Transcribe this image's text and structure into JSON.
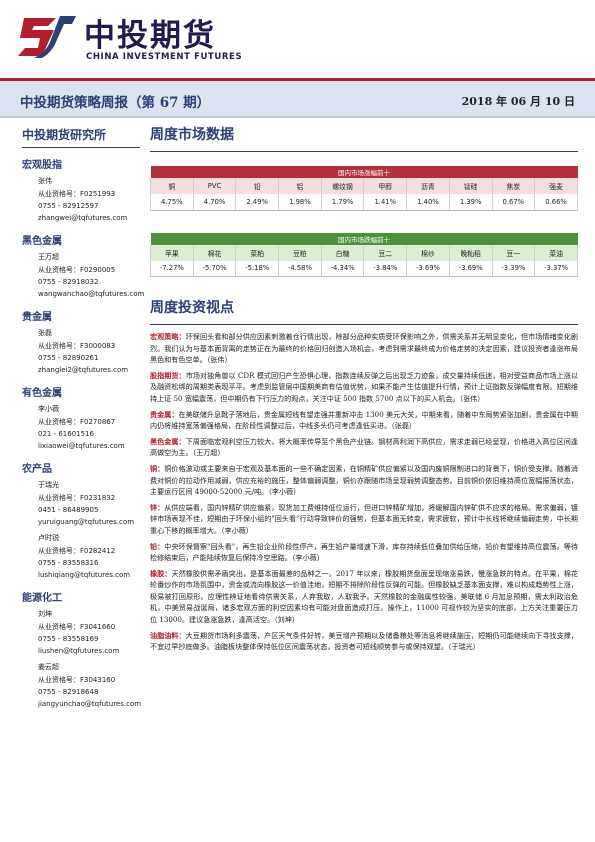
{
  "brand": {
    "name_cn": "中投期货",
    "name_en": "CHINA INVESTMENT FUTURES"
  },
  "report": {
    "title": "中投期货策略周报（第 67 期）",
    "date": "2018 年 06 月 10 日"
  },
  "sidebar": {
    "institute": "中投期货研究所",
    "sections": [
      {
        "title": "宏观股指",
        "people": [
          {
            "name": "张伟",
            "cert": "从业资格号：F0251993",
            "phone": "0755 - 82912597",
            "email": "zhangwei@tqfutures.com"
          }
        ]
      },
      {
        "title": "黑色金属",
        "people": [
          {
            "name": "王万超",
            "cert": "从业资格号：F0290005",
            "phone": "0755 - 82918032",
            "email": "wangwanchao@tqfutures.com"
          }
        ]
      },
      {
        "title": "贵金属",
        "people": [
          {
            "name": "张磊",
            "cert": "从业资格号：F3000083",
            "phone": "0755 - 82890261",
            "email": "zhanglei2@tqfutures.com"
          }
        ]
      },
      {
        "title": "有色金属",
        "people": [
          {
            "name": "李小薇",
            "cert": "从业资格号：F0270867",
            "phone": "021 - 61601516",
            "email": "lixiaowei@tqfutures.com"
          }
        ]
      },
      {
        "title": "农产品",
        "people": [
          {
            "name": "于瑞光",
            "cert": "从业资格号：F0231832",
            "phone": "0451 - 86489905",
            "email": "yuruiguang@tqfutures.com"
          },
          {
            "name": "卢时锐",
            "cert": "从业资格号：F0282412",
            "phone": "0755 - 83558316",
            "email": "lushiqiang@tqfutures.com"
          }
        ]
      },
      {
        "title": "能源化工",
        "people": [
          {
            "name": "刘坤",
            "cert": "从业资格号：F3041660",
            "phone": "0755 - 83558169",
            "email": "liushen@tqfutures.com"
          },
          {
            "name": "姜云超",
            "cert": "从业资格号：F3043160",
            "phone": "0755 - 82918648",
            "email": "jiangyunchao@tqfutures.com"
          }
        ]
      }
    ]
  },
  "market": {
    "heading": "周度市场数据",
    "up_table": {
      "caption": "国内市场涨幅前十",
      "names": [
        "铜",
        "PVC",
        "铅",
        "铝",
        "螺纹钢",
        "甲醇",
        "沥青",
        "锰硅",
        "焦炭",
        "强麦"
      ],
      "values": [
        "4.75%",
        "4.70%",
        "2.49%",
        "1.98%",
        "1.79%",
        "1.41%",
        "1.40%",
        "1.39%",
        "0.67%",
        "0.66%"
      ]
    },
    "down_table": {
      "caption": "国内市场跌幅前十",
      "names": [
        "苹果",
        "棉花",
        "菜粕",
        "豆粕",
        "白糖",
        "豆二",
        "棉纱",
        "晚籼稻",
        "豆一",
        "菜油"
      ],
      "values": [
        "-7.27%",
        "-5.70%",
        "-5.18%",
        "-4.58%",
        "-4.34%",
        "-3.84%",
        "-3.69%",
        "-3.69%",
        "-3.39%",
        "-3.37%"
      ]
    }
  },
  "views": {
    "heading": "周度投资视点",
    "paragraphs": [
      {
        "key": "宏观策略：",
        "text": "环保回头看和部分供应因素刺激着仓行情出现，除部分品种实质受环保影响之外，供需关系并无明显变化，但市场情绪变化剧烈。我们认为与基本面背离的走势正在为最终的价格回归创造入场机会，考虑到需求最终成为价格走势的决定因素，建议投资者逢涨布局黑色和有色空单。（张伟）"
      },
      {
        "key": "股指期货：",
        "text": "市场对独角兽以 CDR 模式回归产生恐惧心理，指数连续反弹之后出现乏力迹象，成交量持续低迷，相对受益商品市场上涨以及融资松绑的周期类表现平平。考虑到监管层中国期美商有估值优势，如果不能产生估值提升行情，预计上证指数反弹幅度有限。短期维持上证 50 宽幅震荡，但中期仍有下行压力的观点，关注中证 500 指数 5700 点以下的买入机会。（张伟）"
      },
      {
        "key": "贵金属：",
        "text": "在美联储升息靴子落地后，贵金属短线有望走强并重新冲击 1300 美元大关，中期来看，随着中东局势紧张加剧，贵金属在中期内仍将维持宽荡偏强格局，在阶段性调整过后，中线多头仍可考虑逢低买进。（张磊）"
      },
      {
        "key": "黑色金属：",
        "text": "下周面临宏观利空压力较大，将大概率传导至个黑色产业链。钢材高利润下高供应，需求走弱已经呈现，价格进入高位区间逢高做空为主。（王万超）"
      },
      {
        "key": "铜：",
        "text": "铜价格波动或主要来自于宏观及基本面的一些不确定因素，在铜精矿供应偏紧以及国内废铜限制进口的背景下，铜价受支撑。随着消费对铜价的拉动作用减弱，供应充裕的施压，整体偏弱调整，铜价亦跟随市场呈现弱势调整态势。目前铜价依旧维持高位宽幅振荡状态，主要运行区间 49000-52000 元/吨。（李小薇）"
      },
      {
        "key": "锌：",
        "text": "从供应端看，国内锌精矿供应偏紧，现货加工费维持低位运行，但进口锌精矿增加，将缓解国内锌矿供不应求的格局。需求偏弱，镀锌市场表现不佳，短期由于环保小组的\"回头看\"行动导致锌价的强势，但基本面无转变，需求疲软，预计中长线将继续偏弱走势，中长期重心下移的概率增大。（李小薇）"
      },
      {
        "key": "铅：",
        "text": "中央环保督察\"回头看\"，再生铅企业阶段性停产，再生铅产量增速下滑，库存持续低位叠加供给压缩，铅价有望维持高位震荡。等待检修结束后，产能陆续恢复后保持冷空思路。（李小薇）"
      },
      {
        "key": "橡胶：",
        "text": "天然橡胶供需矛盾突出，是基本面最差的品种之一。2017 年以来，橡胶期货盘面呈现缩涨易跌，慢涨急跌的特点。在平果，棉花轮番炒作的市场氛围中，资金或流向橡胶这一价值洼地，短期不排除阶段性反弹的可能。但橡胶缺乏基本面支撑，难以构成趋势性上涨，极易被打回原形。应理性辨证地看待供需关系，人弃我取，人取我予。天然橡胶的金融属性较强，美联储 6 月加息预期，需太利政治危机，中美贸易战诞局，诸多宏观方面的利空因素均有可能对盘面造成打压。操作上，11000 可视作较为坚实的底部，上方关注重要压力位 13000。建议急涨急跌，逢高活空。（刘坤）"
      },
      {
        "key": "油脂油料：",
        "text": "大豆期货市场利多震荡，产区天气条件好转，美豆增产预期以及储备粮处等消息将继续施压，短期仍可能继续向下寻找支撑，不宜过早抄底做多。油脂板块整体保持低位区间震荡状态，投资者可短线顺势参与或保持观望。（于瑞光）"
      }
    ]
  }
}
